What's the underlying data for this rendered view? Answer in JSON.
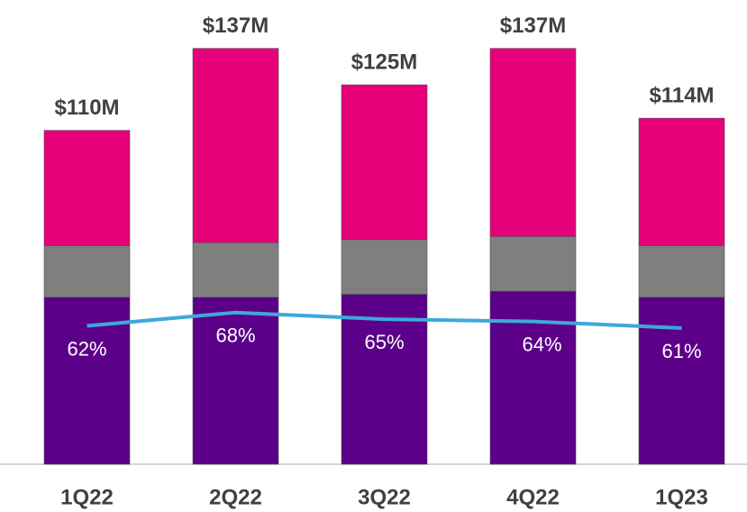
{
  "chart_data": {
    "type": "bar",
    "stacked": true,
    "categories": [
      "1Q22",
      "2Q22",
      "3Q22",
      "4Q22",
      "1Q23"
    ],
    "series": [
      {
        "color": "#5c0089",
        "values": [
          55,
          55,
          56,
          57,
          55
        ]
      },
      {
        "color": "#7f7f7f",
        "values": [
          17,
          18,
          18,
          18,
          17
        ]
      },
      {
        "color": "#e6007a",
        "values": [
          38,
          64,
          51,
          62,
          42
        ]
      }
    ],
    "totals": {
      "values": [
        110,
        137,
        125,
        137,
        114
      ],
      "value_labels": [
        "$110M",
        "$137M",
        "$125M",
        "$137M",
        "$114M"
      ]
    },
    "line": {
      "color": "#3ea8dc",
      "axis": "y2",
      "values": [
        62,
        68,
        65,
        64,
        61
      ],
      "value_labels": [
        "62%",
        "68%",
        "65%",
        "64%",
        "61%"
      ]
    },
    "ylim": [
      0,
      147
    ],
    "y2lim": [
      0,
      200
    ]
  }
}
